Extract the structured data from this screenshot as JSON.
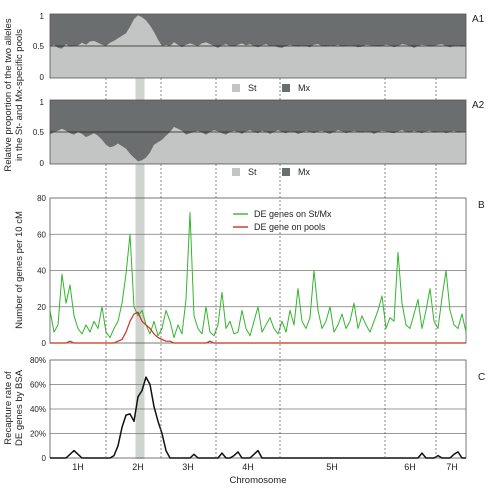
{
  "figure": {
    "ylabel_top_line1": "Relative proportion of the two alleles",
    "ylabel_top_line2": "in the St- and Mx-specific pools",
    "xlabel": "Chromosome",
    "chromosomes": [
      "1H",
      "2H",
      "3H",
      "4H",
      "5H",
      "6H",
      "7H"
    ]
  },
  "colors": {
    "st": "#c2c5c3",
    "mx": "#6b6e6e",
    "highlight": "#c8ccc9",
    "de_st_mx": "#33b52d",
    "de_pools": "#c8331f",
    "recapture": "#111111"
  },
  "chart_data": [
    {
      "panel": "A1",
      "type": "area",
      "ylim": [
        0,
        1
      ],
      "yticks": [
        "0",
        "0.5",
        "1"
      ],
      "legend": [
        "St",
        "Mx"
      ],
      "legend_position": "bottom-center",
      "x": [
        0,
        4,
        8,
        12,
        16,
        20,
        24,
        28,
        32,
        36,
        40,
        44,
        48,
        52,
        56,
        60,
        64,
        68,
        72,
        76,
        80,
        84,
        88,
        92,
        96,
        100,
        104,
        108,
        112,
        116,
        120,
        124,
        128,
        132,
        136,
        140,
        144,
        148,
        152,
        156,
        160,
        164,
        168,
        172,
        176,
        180,
        184,
        188,
        192,
        196,
        200,
        204,
        208,
        212,
        216,
        220,
        224,
        228,
        232,
        236,
        240,
        244,
        248,
        252,
        256,
        260,
        264,
        268,
        272,
        276,
        280,
        284,
        288,
        292,
        296,
        300,
        304,
        308,
        312,
        316,
        320,
        324,
        328,
        332,
        336,
        340,
        344,
        348,
        352,
        356,
        360,
        364,
        368,
        372,
        376,
        380,
        384,
        388,
        392,
        396,
        400,
        404,
        408,
        412,
        416
      ],
      "series": [
        {
          "name": "St",
          "values": [
            0.5,
            0.52,
            0.47,
            0.46,
            0.53,
            0.49,
            0.5,
            0.51,
            0.55,
            0.52,
            0.57,
            0.58,
            0.55,
            0.52,
            0.5,
            0.55,
            0.58,
            0.62,
            0.66,
            0.7,
            0.8,
            0.92,
            0.98,
            0.95,
            0.9,
            0.82,
            0.72,
            0.6,
            0.5,
            0.52,
            0.5,
            0.56,
            0.52,
            0.48,
            0.52,
            0.54,
            0.52,
            0.5,
            0.54,
            0.56,
            0.53,
            0.5,
            0.47,
            0.51,
            0.53,
            0.5,
            0.49,
            0.52,
            0.54,
            0.51,
            0.53,
            0.5,
            0.48,
            0.51,
            0.53,
            0.5,
            0.51,
            0.48,
            0.47,
            0.5,
            0.52,
            0.5,
            0.49,
            0.51,
            0.5,
            0.48,
            0.52,
            0.53,
            0.5,
            0.49,
            0.51,
            0.5,
            0.52,
            0.49,
            0.5,
            0.51,
            0.5,
            0.48,
            0.49,
            0.52,
            0.51,
            0.5,
            0.49,
            0.5,
            0.52,
            0.51,
            0.48,
            0.5,
            0.53,
            0.52,
            0.5,
            0.47,
            0.5,
            0.52,
            0.51,
            0.49,
            0.5,
            0.52,
            0.53,
            0.5,
            0.48,
            0.5,
            0.51,
            0.49,
            0.5
          ]
        }
      ]
    },
    {
      "panel": "A2",
      "type": "area",
      "ylim": [
        0,
        1
      ],
      "yticks": [
        "0",
        "0.5",
        "1"
      ],
      "legend": [
        "St",
        "Mx"
      ],
      "legend_position": "bottom-center",
      "x": [
        0,
        4,
        8,
        12,
        16,
        20,
        24,
        28,
        32,
        36,
        40,
        44,
        48,
        52,
        56,
        60,
        64,
        68,
        72,
        76,
        80,
        84,
        88,
        92,
        96,
        100,
        104,
        108,
        112,
        116,
        120,
        124,
        128,
        132,
        136,
        140,
        144,
        148,
        152,
        156,
        160,
        164,
        168,
        172,
        176,
        180,
        184,
        188,
        192,
        196,
        200,
        204,
        208,
        212,
        216,
        220,
        224,
        228,
        232,
        236,
        240,
        244,
        248,
        252,
        256,
        260,
        264,
        268,
        272,
        276,
        280,
        284,
        288,
        292,
        296,
        300,
        304,
        308,
        312,
        316,
        320,
        324,
        328,
        332,
        336,
        340,
        344,
        348,
        352,
        356,
        360,
        364,
        368,
        372,
        376,
        380,
        384,
        388,
        392,
        396,
        400,
        404,
        408,
        412,
        416
      ],
      "series": [
        {
          "name": "St",
          "values": [
            0.46,
            0.5,
            0.52,
            0.55,
            0.52,
            0.48,
            0.46,
            0.5,
            0.47,
            0.42,
            0.45,
            0.48,
            0.44,
            0.38,
            0.3,
            0.26,
            0.28,
            0.32,
            0.28,
            0.24,
            0.16,
            0.1,
            0.04,
            0.06,
            0.1,
            0.18,
            0.3,
            0.34,
            0.38,
            0.44,
            0.5,
            0.58,
            0.55,
            0.52,
            0.46,
            0.48,
            0.5,
            0.52,
            0.49,
            0.46,
            0.5,
            0.53,
            0.51,
            0.48,
            0.46,
            0.5,
            0.52,
            0.5,
            0.47,
            0.51,
            0.53,
            0.5,
            0.48,
            0.52,
            0.5,
            0.47,
            0.5,
            0.53,
            0.5,
            0.48,
            0.51,
            0.5,
            0.47,
            0.49,
            0.52,
            0.5,
            0.48,
            0.51,
            0.52,
            0.49,
            0.47,
            0.5,
            0.53,
            0.51,
            0.48,
            0.5,
            0.52,
            0.5,
            0.49,
            0.51,
            0.5,
            0.47,
            0.5,
            0.52,
            0.51,
            0.49,
            0.48,
            0.51,
            0.53,
            0.5,
            0.49,
            0.52,
            0.5,
            0.48,
            0.51,
            0.52,
            0.49,
            0.5,
            0.51,
            0.48,
            0.5,
            0.52,
            0.49,
            0.5,
            0.51
          ]
        }
      ]
    },
    {
      "panel": "B",
      "type": "line",
      "ylabel": "Number of genes per 10 cM",
      "ylim": [
        0,
        80
      ],
      "yticks": [
        "0",
        "20",
        "40",
        "60",
        "80"
      ],
      "grid": "horizontal",
      "legend_position": "top-right",
      "x": [
        0,
        4,
        8,
        12,
        16,
        20,
        24,
        28,
        32,
        36,
        40,
        44,
        48,
        52,
        56,
        60,
        64,
        68,
        72,
        76,
        80,
        84,
        88,
        92,
        96,
        100,
        104,
        108,
        112,
        116,
        120,
        124,
        128,
        132,
        136,
        140,
        144,
        148,
        152,
        156,
        160,
        164,
        168,
        172,
        176,
        180,
        184,
        188,
        192,
        196,
        200,
        204,
        208,
        212,
        216,
        220,
        224,
        228,
        232,
        236,
        240,
        244,
        248,
        252,
        256,
        260,
        264,
        268,
        272,
        276,
        280,
        284,
        288,
        292,
        296,
        300,
        304,
        308,
        312,
        316,
        320,
        324,
        328,
        332,
        336,
        340,
        344,
        348,
        352,
        356,
        360,
        364,
        368,
        372,
        376,
        380,
        384,
        388,
        392,
        396,
        400,
        404,
        408,
        412,
        416
      ],
      "series": [
        {
          "name": "DE genes on St/Mx",
          "values": [
            18,
            6,
            10,
            38,
            22,
            32,
            15,
            8,
            5,
            10,
            6,
            12,
            8,
            20,
            6,
            3,
            8,
            12,
            22,
            38,
            60,
            20,
            15,
            18,
            10,
            5,
            12,
            4,
            8,
            18,
            12,
            3,
            10,
            5,
            24,
            72,
            15,
            8,
            5,
            20,
            6,
            4,
            10,
            28,
            8,
            12,
            5,
            6,
            18,
            8,
            4,
            12,
            20,
            6,
            10,
            14,
            8,
            5,
            12,
            6,
            18,
            10,
            30,
            12,
            8,
            14,
            40,
            18,
            8,
            12,
            20,
            6,
            10,
            16,
            8,
            12,
            22,
            8,
            15,
            10,
            6,
            12,
            18,
            26,
            8,
            14,
            12,
            50,
            22,
            10,
            8,
            16,
            24,
            8,
            18,
            30,
            12,
            8,
            25,
            40,
            18,
            10,
            8,
            16,
            6
          ]
        },
        {
          "name": "DE gene on pools",
          "values": [
            0,
            0,
            0,
            0,
            0,
            1,
            0,
            0,
            0,
            0,
            0,
            0,
            0,
            0,
            0,
            0,
            0,
            1,
            2,
            6,
            12,
            16,
            17,
            12,
            10,
            8,
            5,
            3,
            2,
            1,
            1,
            0,
            0,
            0,
            0,
            0,
            0,
            0,
            0,
            0,
            1,
            0,
            0,
            0,
            0,
            0,
            0,
            0,
            0,
            0,
            0,
            0,
            0,
            0,
            0,
            0,
            0,
            0,
            0,
            0,
            0,
            0,
            0,
            0,
            0,
            0,
            0,
            0,
            0,
            0,
            0,
            0,
            0,
            0,
            0,
            0,
            0,
            0,
            0,
            0,
            0,
            0,
            0,
            0,
            0,
            0,
            0,
            0,
            0,
            0,
            0,
            0,
            0,
            0,
            0,
            0,
            0,
            0,
            0,
            0,
            0,
            0,
            0,
            0,
            0
          ]
        }
      ]
    },
    {
      "panel": "C",
      "type": "line",
      "ylabel_line1": "Recapture rate of",
      "ylabel_line2": "DE genes by BSA",
      "ylim": [
        0,
        80
      ],
      "yticks": [
        "0",
        "20%",
        "40%",
        "60%",
        "80%"
      ],
      "grid": "horizontal",
      "x": [
        0,
        4,
        8,
        12,
        16,
        20,
        24,
        28,
        32,
        36,
        40,
        44,
        48,
        52,
        56,
        60,
        64,
        68,
        72,
        76,
        80,
        84,
        88,
        92,
        96,
        100,
        104,
        108,
        112,
        116,
        120,
        124,
        128,
        132,
        136,
        140,
        144,
        148,
        152,
        156,
        160,
        164,
        168,
        172,
        176,
        180,
        184,
        188,
        192,
        196,
        200,
        204,
        208,
        212,
        216,
        220,
        224,
        228,
        232,
        236,
        240,
        244,
        248,
        252,
        256,
        260,
        264,
        268,
        272,
        276,
        280,
        284,
        288,
        292,
        296,
        300,
        304,
        308,
        312,
        316,
        320,
        324,
        328,
        332,
        336,
        340,
        344,
        348,
        352,
        356,
        360,
        364,
        368,
        372,
        376,
        380,
        384,
        388,
        392,
        396,
        400,
        404,
        408,
        412,
        416
      ],
      "series": [
        {
          "name": "",
          "values": [
            0,
            0,
            0,
            0,
            0,
            3,
            6,
            3,
            0,
            0,
            0,
            0,
            0,
            0,
            0,
            0,
            2,
            10,
            25,
            35,
            36,
            30,
            50,
            55,
            66,
            60,
            42,
            30,
            20,
            6,
            0,
            0,
            0,
            0,
            0,
            0,
            3,
            0,
            0,
            0,
            0,
            0,
            0,
            4,
            0,
            0,
            2,
            5,
            0,
            0,
            0,
            3,
            6,
            0,
            0,
            0,
            0,
            0,
            0,
            0,
            0,
            0,
            0,
            0,
            0,
            0,
            0,
            0,
            0,
            0,
            0,
            0,
            0,
            0,
            0,
            0,
            0,
            0,
            0,
            0,
            0,
            0,
            0,
            0,
            0,
            0,
            0,
            0,
            0,
            0,
            0,
            0,
            0,
            4,
            0,
            0,
            0,
            2,
            0,
            0,
            0,
            3,
            5,
            0,
            0
          ]
        }
      ]
    }
  ]
}
